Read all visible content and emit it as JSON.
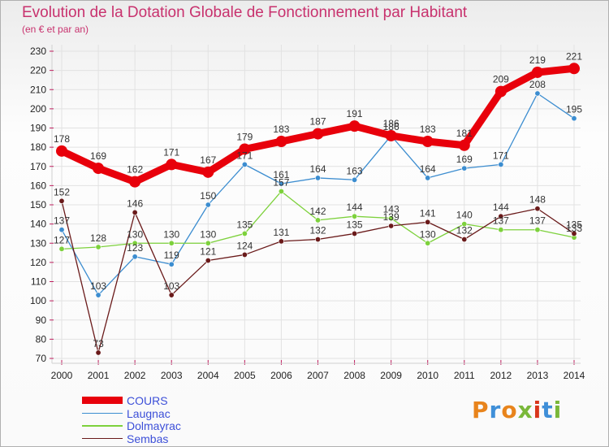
{
  "title": "Evolution de la Dotation Globale de Fonctionnement par Habitant",
  "subtitle": "(en € et par an)",
  "logo": {
    "text": "Proxiti",
    "letter_colors": [
      "#e8841c",
      "#3f8fd8",
      "#e8841c",
      "#7ab83a",
      "#d8361c",
      "#3f8fd8",
      "#7ab83a"
    ]
  },
  "chart_data": {
    "type": "line",
    "title": "Evolution de la Dotation Globale de Fonctionnement par Habitant",
    "subtitle": "(en € et par an)",
    "xlabel": "",
    "ylabel": "",
    "x": [
      "2000",
      "2001",
      "2002",
      "2003",
      "2004",
      "2005",
      "2006",
      "2007",
      "2008",
      "2009",
      "2010",
      "2011",
      "2012",
      "2013",
      "2014"
    ],
    "yticks": [
      70,
      80,
      90,
      100,
      110,
      120,
      130,
      140,
      150,
      160,
      170,
      180,
      190,
      200,
      210,
      220,
      230
    ],
    "ylim": [
      70,
      230
    ],
    "grid": true,
    "legend": "bottom-left",
    "series": [
      {
        "name": "COURS",
        "color": "#e8000b",
        "values": [
          178,
          169,
          162,
          171,
          167,
          179,
          183,
          187,
          191,
          186,
          183,
          181,
          209,
          219,
          221
        ]
      },
      {
        "name": "Laugnac",
        "color": "#3c8dd0",
        "values": [
          137,
          103,
          123,
          119,
          150,
          171,
          161,
          164,
          163,
          186,
          164,
          169,
          171,
          208,
          195
        ]
      },
      {
        "name": "Dolmayrac",
        "color": "#7dd13c",
        "values": [
          127,
          128,
          130,
          130,
          130,
          135,
          157,
          142,
          144,
          143,
          130,
          140,
          137,
          137,
          133
        ]
      },
      {
        "name": "Sembas",
        "color": "#6a1a1a",
        "values": [
          152,
          73,
          146,
          103,
          121,
          124,
          131,
          132,
          135,
          139,
          141,
          132,
          144,
          148,
          135
        ]
      }
    ]
  }
}
